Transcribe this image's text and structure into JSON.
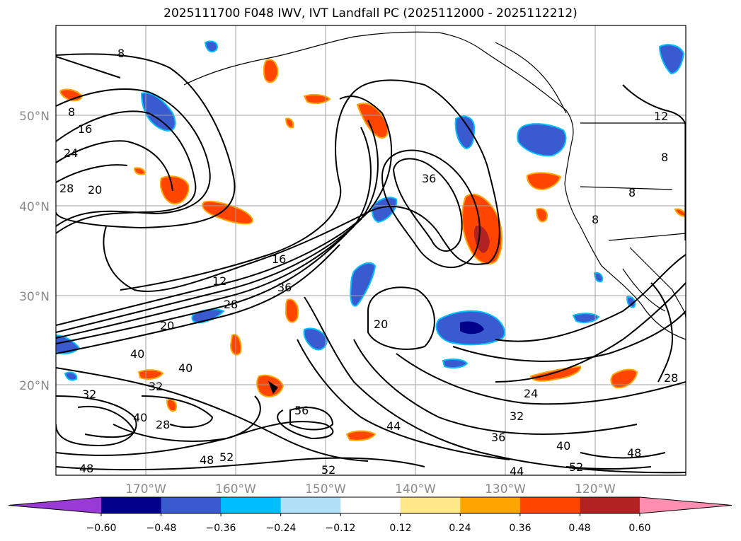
{
  "title": "2025111700 F048 IWV, IVT Landfall PC (2025112000 - 2025112212)",
  "map": {
    "lat_ticks": [
      "50°N",
      "40°N",
      "30°N",
      "20°N"
    ],
    "lon_ticks": [
      "170°W",
      "160°W",
      "150°W",
      "140°W",
      "130°W",
      "120°W"
    ],
    "grid": true,
    "contour_labels": [
      "8",
      "8",
      "16",
      "24",
      "28",
      "20",
      "12",
      "16",
      "36",
      "36",
      "28",
      "20",
      "40",
      "40",
      "32",
      "32",
      "28",
      "40",
      "56",
      "44",
      "36",
      "32",
      "24",
      "40",
      "48",
      "52",
      "52",
      "48",
      "48",
      "52",
      "20",
      "28",
      "12",
      "8",
      "8",
      "8",
      "44"
    ]
  },
  "colorbar": {
    "ticks": [
      "−0.60",
      "−0.48",
      "−0.36",
      "−0.24",
      "−0.12",
      "0.12",
      "0.24",
      "0.36",
      "0.48",
      "0.60"
    ],
    "colors": [
      "#9a3ad6",
      "#00008b",
      "#3a5ad0",
      "#00bfff",
      "#b0e0f8",
      "#ffffff",
      "#ffe98a",
      "#ffa500",
      "#ff4500",
      "#b22222",
      "#ff8fb0"
    ]
  }
}
